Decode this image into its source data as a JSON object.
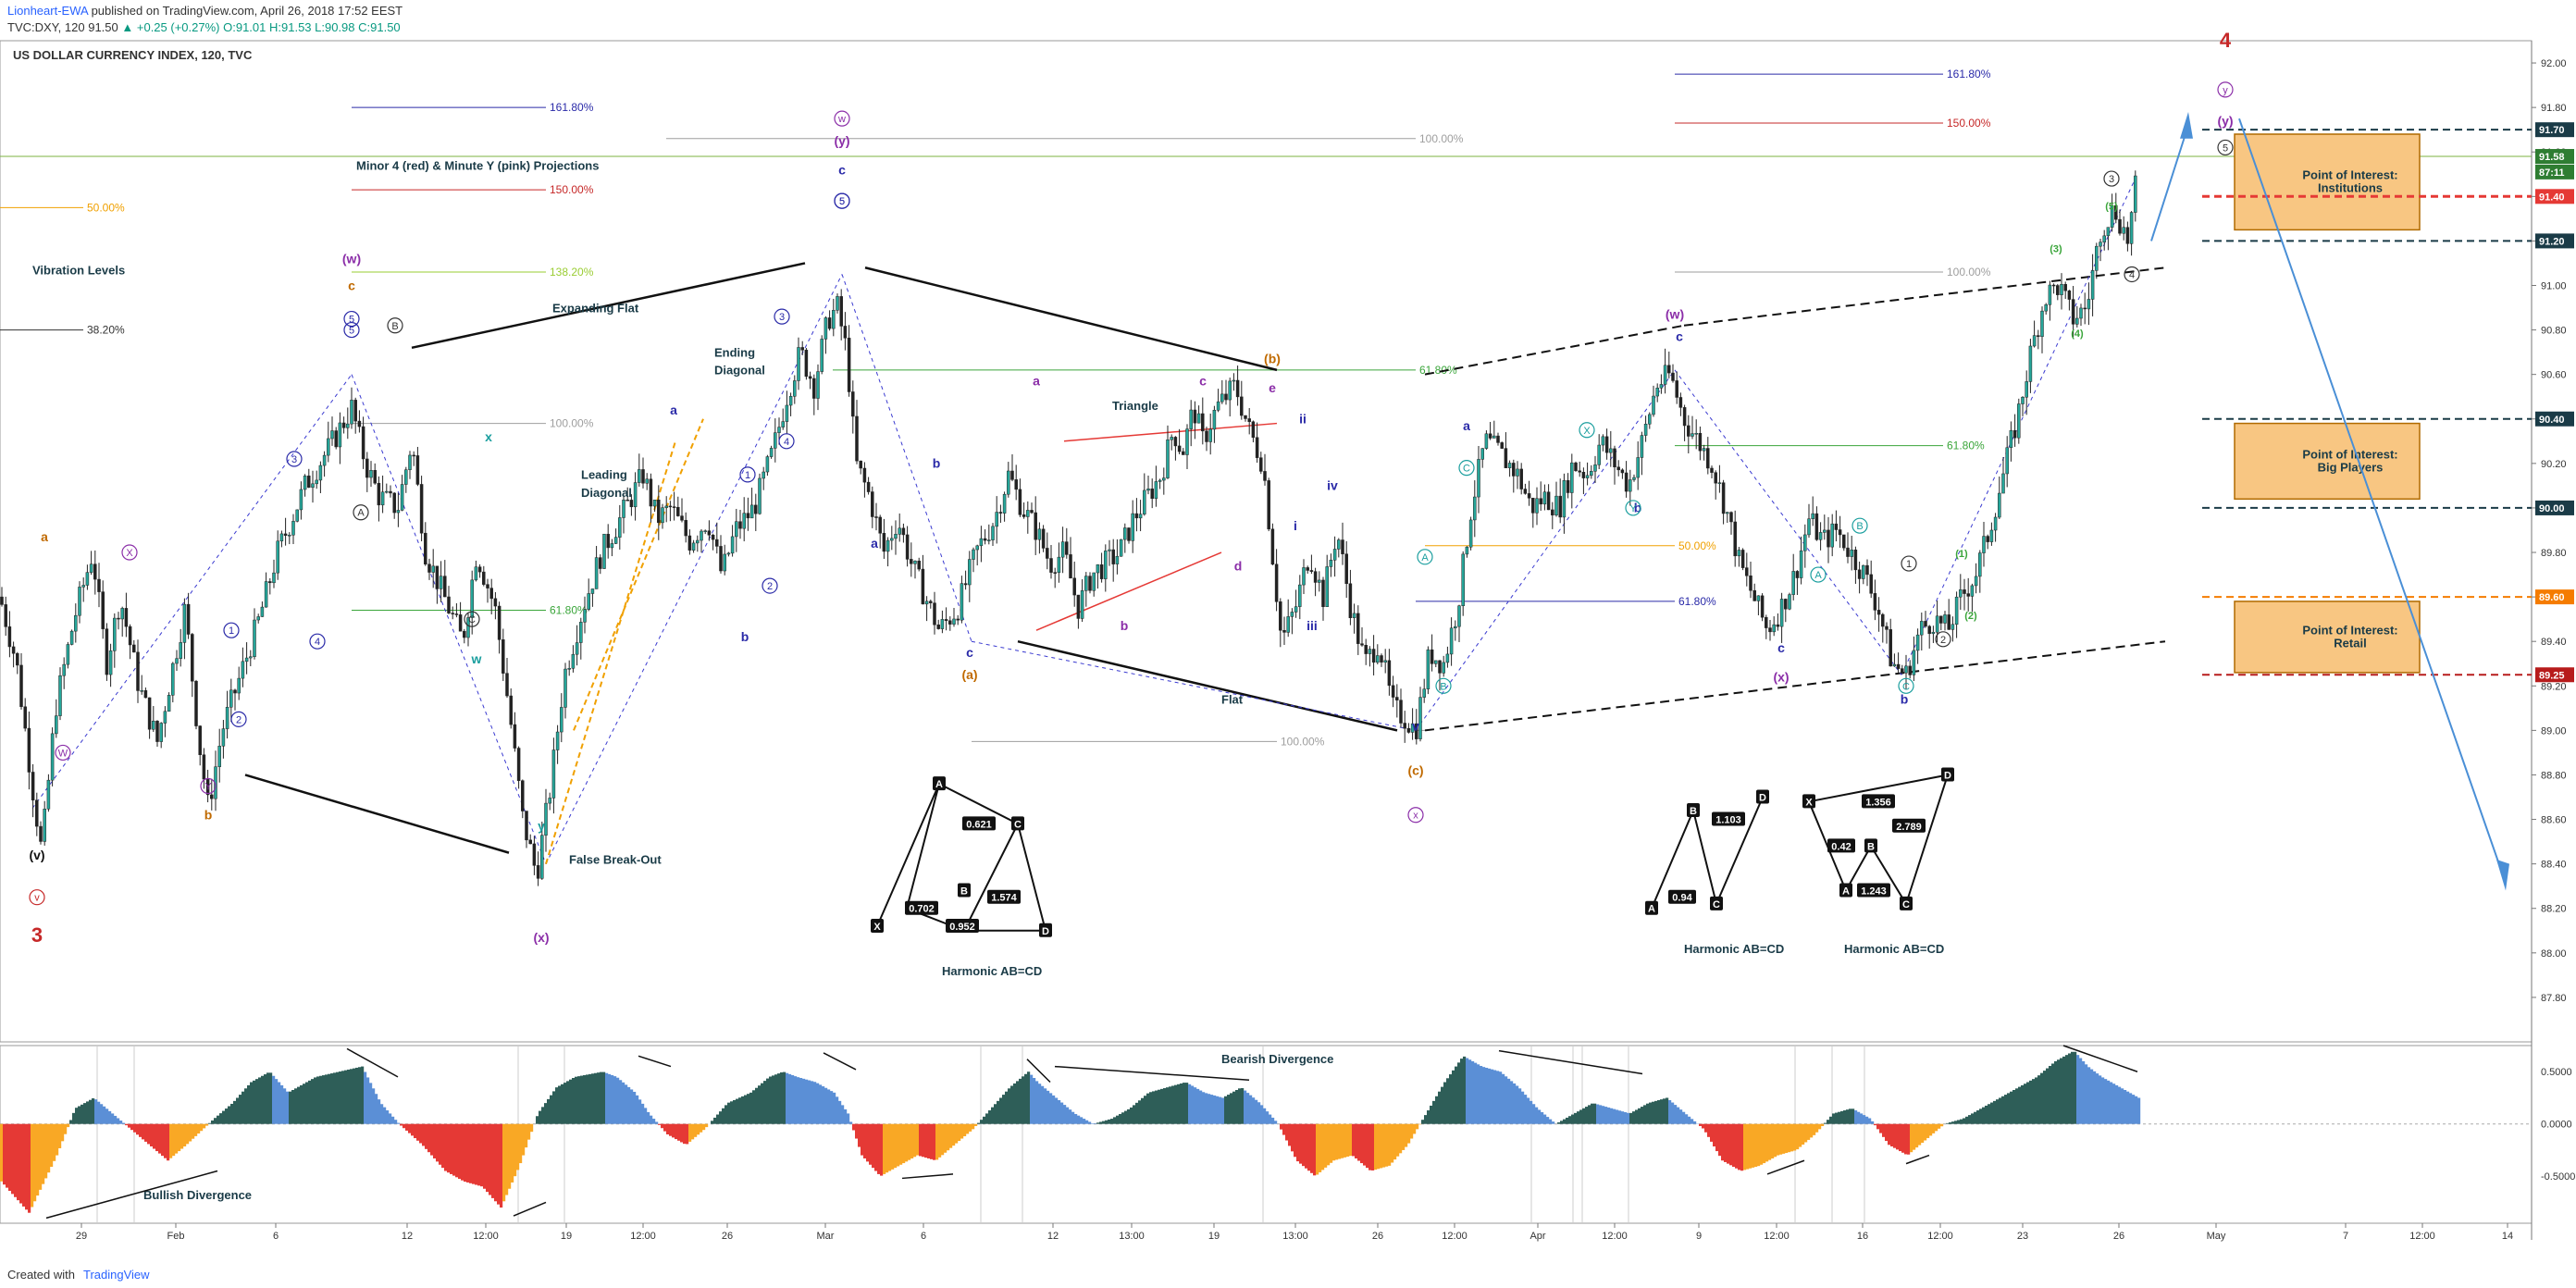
{
  "header": {
    "publisher_user": "Lionheart-EWA",
    "published_text": "published on TradingView.com, April 26, 2018 17:52 EEST",
    "symbol_line_prefix": "TVC:DXY, 120",
    "last_price": "91.50",
    "change": "▲ +0.25 (+0.27%)",
    "ohlc": "O:91.01 H:91.53 L:90.98 C:91.50",
    "chart_title": "US DOLLAR CURRENCY INDEX, 120, TVC"
  },
  "footer": {
    "created_with": "Created with",
    "brand": "TradingView"
  },
  "colors": {
    "up_candle": "#26a69a",
    "down_candle": "#222222",
    "wave_purple": "#8b2ea8",
    "wave_blue": "#2a2aa8",
    "wave_orange": "#c06a00",
    "wave_red": "#c62828",
    "wave_teal": "#1a9e9e",
    "wave_green": "#3aa53a",
    "osc_pos_dark": "#2e5e58",
    "osc_pos_light": "#5b8fd6",
    "osc_neg_red": "#e53935",
    "osc_neg_orange": "#f9a825",
    "zone_fill": "#f8c682",
    "zone_border": "#b06a00"
  },
  "chart_data": [
    {
      "type": "line",
      "name": "price",
      "title": "US DOLLAR CURRENCY INDEX, 120, TVC",
      "ylim": [
        87.6,
        92.1
      ],
      "y_ticks": [
        "92.00",
        "91.80",
        "91.60",
        "91.40",
        "91.20",
        "91.00",
        "90.80",
        "90.60",
        "90.40",
        "90.20",
        "90.00",
        "89.80",
        "89.60",
        "89.40",
        "89.20",
        "89.00",
        "88.80",
        "88.60",
        "88.40",
        "88.20",
        "88.00",
        "87.80"
      ],
      "x_ticks": [
        "29",
        "Feb",
        "6",
        "12",
        "12:00",
        "19",
        "12:00",
        "26",
        "Mar",
        "6",
        "12",
        "13:00",
        "19",
        "13:00",
        "26",
        "12:00",
        "Apr",
        "12:00",
        "9",
        "12:00",
        "16",
        "12:00",
        "23",
        "26",
        "May",
        "7",
        "12:00",
        "14"
      ],
      "series_path": [
        [
          0,
          89.6
        ],
        [
          18,
          89.3
        ],
        [
          35,
          88.75
        ],
        [
          45,
          88.45
        ],
        [
          60,
          89.1
        ],
        [
          80,
          89.5
        ],
        [
          100,
          89.8
        ],
        [
          115,
          89.3
        ],
        [
          130,
          89.6
        ],
        [
          150,
          89.2
        ],
        [
          170,
          88.95
        ],
        [
          185,
          89.25
        ],
        [
          200,
          89.55
        ],
        [
          215,
          88.95
        ],
        [
          225,
          88.65
        ],
        [
          240,
          89.0
        ],
        [
          260,
          89.25
        ],
        [
          280,
          89.5
        ],
        [
          300,
          89.8
        ],
        [
          330,
          90.1
        ],
        [
          360,
          90.3
        ],
        [
          380,
          90.45
        ],
        [
          395,
          90.2
        ],
        [
          410,
          90.05
        ],
        [
          430,
          90.0
        ],
        [
          445,
          90.3
        ],
        [
          460,
          89.8
        ],
        [
          480,
          89.6
        ],
        [
          500,
          89.4
        ],
        [
          515,
          89.8
        ],
        [
          535,
          89.55
        ],
        [
          550,
          89.1
        ],
        [
          565,
          88.6
        ],
        [
          580,
          88.35
        ],
        [
          595,
          88.75
        ],
        [
          610,
          89.25
        ],
        [
          630,
          89.55
        ],
        [
          650,
          89.8
        ],
        [
          670,
          89.95
        ],
        [
          695,
          90.15
        ],
        [
          710,
          89.95
        ],
        [
          725,
          90.0
        ],
        [
          745,
          89.85
        ],
        [
          765,
          89.95
        ],
        [
          780,
          89.7
        ],
        [
          795,
          89.9
        ],
        [
          815,
          90.0
        ],
        [
          835,
          90.25
        ],
        [
          850,
          90.5
        ],
        [
          865,
          90.7
        ],
        [
          880,
          90.55
        ],
        [
          895,
          90.85
        ],
        [
          905,
          90.9
        ],
        [
          915,
          90.7
        ],
        [
          925,
          90.2
        ],
        [
          940,
          90.05
        ],
        [
          955,
          89.8
        ],
        [
          970,
          89.95
        ],
        [
          985,
          89.75
        ],
        [
          1000,
          89.6
        ],
        [
          1015,
          89.45
        ],
        [
          1035,
          89.55
        ],
        [
          1055,
          89.8
        ],
        [
          1075,
          89.95
        ],
        [
          1090,
          90.15
        ],
        [
          1105,
          90.0
        ],
        [
          1120,
          89.9
        ],
        [
          1135,
          89.75
        ],
        [
          1150,
          89.8
        ],
        [
          1165,
          89.55
        ],
        [
          1180,
          89.7
        ],
        [
          1195,
          89.75
        ],
        [
          1210,
          89.8
        ],
        [
          1225,
          89.95
        ],
        [
          1240,
          90.05
        ],
        [
          1255,
          90.15
        ],
        [
          1268,
          90.35
        ],
        [
          1278,
          90.25
        ],
        [
          1290,
          90.45
        ],
        [
          1300,
          90.3
        ],
        [
          1315,
          90.45
        ],
        [
          1335,
          90.55
        ],
        [
          1350,
          90.35
        ],
        [
          1365,
          90.2
        ],
        [
          1375,
          89.8
        ],
        [
          1385,
          89.4
        ],
        [
          1400,
          89.55
        ],
        [
          1415,
          89.8
        ],
        [
          1430,
          89.6
        ],
        [
          1445,
          89.9
        ],
        [
          1460,
          89.55
        ],
        [
          1475,
          89.3
        ],
        [
          1490,
          89.4
        ],
        [
          1505,
          89.1
        ],
        [
          1520,
          89.05
        ],
        [
          1530,
          89.0
        ],
        [
          1545,
          89.35
        ],
        [
          1560,
          89.3
        ],
        [
          1575,
          89.55
        ],
        [
          1590,
          90.0
        ],
        [
          1605,
          90.3
        ],
        [
          1620,
          90.25
        ],
        [
          1640,
          90.15
        ],
        [
          1655,
          90.0
        ],
        [
          1670,
          90.05
        ],
        [
          1685,
          90.0
        ],
        [
          1700,
          90.2
        ],
        [
          1715,
          90.15
        ],
        [
          1730,
          90.3
        ],
        [
          1745,
          90.2
        ],
        [
          1760,
          90.1
        ],
        [
          1775,
          90.3
        ],
        [
          1790,
          90.55
        ],
        [
          1805,
          90.6
        ],
        [
          1820,
          90.4
        ],
        [
          1835,
          90.3
        ],
        [
          1850,
          90.2
        ],
        [
          1865,
          90.0
        ],
        [
          1880,
          89.75
        ],
        [
          1895,
          89.6
        ],
        [
          1910,
          89.45
        ],
        [
          1925,
          89.55
        ],
        [
          1940,
          89.7
        ],
        [
          1955,
          89.95
        ],
        [
          1970,
          89.85
        ],
        [
          1985,
          89.9
        ],
        [
          2000,
          89.8
        ],
        [
          2015,
          89.7
        ],
        [
          2030,
          89.55
        ],
        [
          2045,
          89.3
        ],
        [
          2060,
          89.25
        ],
        [
          2075,
          89.45
        ],
        [
          2090,
          89.5
        ],
        [
          2105,
          89.45
        ],
        [
          2120,
          89.6
        ],
        [
          2135,
          89.7
        ],
        [
          2150,
          89.9
        ],
        [
          2165,
          90.15
        ],
        [
          2180,
          90.4
        ],
        [
          2195,
          90.7
        ],
        [
          2210,
          90.95
        ],
        [
          2225,
          91.0
        ],
        [
          2240,
          90.85
        ],
        [
          2255,
          90.9
        ],
        [
          2270,
          91.25
        ],
        [
          2285,
          91.35
        ],
        [
          2300,
          91.2
        ],
        [
          2310,
          91.5
        ]
      ]
    },
    {
      "type": "area",
      "name": "oscillator",
      "y_ticks": [
        "0.5000",
        "0.0000",
        "-0.5000"
      ],
      "ylim": [
        -0.95,
        0.75
      ],
      "series_path": [
        [
          0,
          -0.55
        ],
        [
          30,
          -0.85
        ],
        [
          60,
          -0.3
        ],
        [
          80,
          0.15
        ],
        [
          100,
          0.25
        ],
        [
          120,
          0.1
        ],
        [
          140,
          -0.05
        ],
        [
          160,
          -0.2
        ],
        [
          180,
          -0.35
        ],
        [
          200,
          -0.2
        ],
        [
          230,
          0.05
        ],
        [
          250,
          0.2
        ],
        [
          270,
          0.4
        ],
        [
          290,
          0.5
        ],
        [
          310,
          0.3
        ],
        [
          340,
          0.45
        ],
        [
          365,
          0.5
        ],
        [
          390,
          0.55
        ],
        [
          410,
          0.2
        ],
        [
          430,
          0.0
        ],
        [
          455,
          -0.2
        ],
        [
          480,
          -0.45
        ],
        [
          500,
          -0.55
        ],
        [
          520,
          -0.6
        ],
        [
          540,
          -0.8
        ],
        [
          560,
          -0.4
        ],
        [
          580,
          0.1
        ],
        [
          600,
          0.35
        ],
        [
          620,
          0.45
        ],
        [
          650,
          0.5
        ],
        [
          665,
          0.45
        ],
        [
          685,
          0.3
        ],
        [
          700,
          0.1
        ],
        [
          720,
          -0.1
        ],
        [
          740,
          -0.2
        ],
        [
          760,
          -0.05
        ],
        [
          785,
          0.2
        ],
        [
          810,
          0.3
        ],
        [
          830,
          0.45
        ],
        [
          845,
          0.5
        ],
        [
          860,
          0.45
        ],
        [
          880,
          0.4
        ],
        [
          900,
          0.3
        ],
        [
          915,
          0.1
        ],
        [
          930,
          -0.3
        ],
        [
          950,
          -0.5
        ],
        [
          970,
          -0.4
        ],
        [
          990,
          -0.3
        ],
        [
          1010,
          -0.35
        ],
        [
          1030,
          -0.2
        ],
        [
          1050,
          -0.05
        ],
        [
          1070,
          0.15
        ],
        [
          1090,
          0.35
        ],
        [
          1110,
          0.5
        ],
        [
          1120,
          0.4
        ],
        [
          1140,
          0.25
        ],
        [
          1160,
          0.1
        ],
        [
          1180,
          0.0
        ],
        [
          1200,
          0.05
        ],
        [
          1220,
          0.15
        ],
        [
          1240,
          0.3
        ],
        [
          1260,
          0.35
        ],
        [
          1280,
          0.4
        ],
        [
          1300,
          0.3
        ],
        [
          1320,
          0.25
        ],
        [
          1340,
          0.35
        ],
        [
          1360,
          0.2
        ],
        [
          1380,
          0.0
        ],
        [
          1400,
          -0.35
        ],
        [
          1420,
          -0.5
        ],
        [
          1440,
          -0.35
        ],
        [
          1460,
          -0.3
        ],
        [
          1480,
          -0.45
        ],
        [
          1500,
          -0.4
        ],
        [
          1520,
          -0.2
        ],
        [
          1540,
          0.1
        ],
        [
          1560,
          0.4
        ],
        [
          1580,
          0.65
        ],
        [
          1600,
          0.55
        ],
        [
          1620,
          0.5
        ],
        [
          1640,
          0.35
        ],
        [
          1660,
          0.15
        ],
        [
          1680,
          0.0
        ],
        [
          1700,
          0.1
        ],
        [
          1720,
          0.2
        ],
        [
          1740,
          0.15
        ],
        [
          1760,
          0.1
        ],
        [
          1780,
          0.2
        ],
        [
          1800,
          0.25
        ],
        [
          1820,
          0.1
        ],
        [
          1840,
          -0.05
        ],
        [
          1860,
          -0.35
        ],
        [
          1880,
          -0.45
        ],
        [
          1900,
          -0.4
        ],
        [
          1920,
          -0.3
        ],
        [
          1940,
          -0.25
        ],
        [
          1960,
          -0.1
        ],
        [
          1980,
          0.1
        ],
        [
          2000,
          0.15
        ],
        [
          2020,
          0.05
        ],
        [
          2040,
          -0.2
        ],
        [
          2060,
          -0.3
        ],
        [
          2080,
          -0.15
        ],
        [
          2100,
          0.0
        ],
        [
          2120,
          0.05
        ],
        [
          2140,
          0.15
        ],
        [
          2160,
          0.25
        ],
        [
          2180,
          0.35
        ],
        [
          2200,
          0.45
        ],
        [
          2220,
          0.6
        ],
        [
          2240,
          0.7
        ],
        [
          2255,
          0.55
        ],
        [
          2270,
          0.45
        ],
        [
          2290,
          0.35
        ],
        [
          2310,
          0.25
        ]
      ]
    }
  ],
  "price_axis_badges": [
    {
      "value": "91.70",
      "color": "#1a3b47"
    },
    {
      "value": "91.58",
      "color": "#2e7d32"
    },
    {
      "value": "87:11",
      "color": "#2e7d32"
    },
    {
      "value": "91.40",
      "color": "#e53935"
    },
    {
      "value": "91.20",
      "color": "#1a3b47"
    },
    {
      "value": "90.40",
      "color": "#1a3b47"
    },
    {
      "value": "90.00",
      "color": "#1a3b47"
    },
    {
      "value": "89.60",
      "color": "#f57c00"
    },
    {
      "value": "89.25",
      "color": "#b71c1c"
    }
  ],
  "zones": [
    {
      "label1": "Point of Interest:",
      "label2": "Institutions"
    },
    {
      "label1": "Point of Interest:",
      "label2": "Big Players"
    },
    {
      "label1": "Point of Interest:",
      "label2": "Retail"
    }
  ],
  "annotations": {
    "projections_title": "Minor 4 (red) & Minute Y (pink) Projections",
    "vibration_levels": "Vibration Levels",
    "expanding_flat": "Expanding Flat",
    "ending_diagonal_1": "Ending",
    "ending_diagonal_2": "Diagonal",
    "leading_diagonal_1": "Leading",
    "leading_diagonal_2": "Diagonal",
    "triangle": "Triangle",
    "flat": "Flat",
    "false_breakout": "False Break-Out",
    "harmonic_1": "Harmonic AB=CD",
    "harmonic_2": "Harmonic AB=CD",
    "harmonic_3": "Harmonic AB=CD",
    "bearish_divergence": "Bearish Divergence",
    "bullish_divergence": "Bullish Divergence",
    "fib_levels": [
      "161.80%",
      "150.00%",
      "138.20%",
      "100.00%",
      "61.80%",
      "50.00%",
      "38.20%"
    ],
    "harmonic_ratios_1": [
      "0.621",
      "0.702",
      "0.952",
      "1.574"
    ],
    "harmonic_ratios_2": [
      "1.103",
      "0.94"
    ],
    "harmonic_ratios_3": [
      "1.356",
      "0.42",
      "2.789",
      "1.243"
    ],
    "wave_labels": [
      "(v)",
      "3",
      "(w)",
      "c",
      "(y)",
      "(x)",
      "(b)",
      "(a)",
      "(c)",
      "x",
      "(w)",
      "(x)",
      "4",
      "y",
      "w",
      "a",
      "b",
      "c",
      "d",
      "e",
      "i",
      "ii",
      "iii",
      "iv",
      "v",
      "A",
      "B",
      "C",
      "X",
      "Y",
      "1",
      "2",
      "3",
      "4",
      "5"
    ]
  }
}
